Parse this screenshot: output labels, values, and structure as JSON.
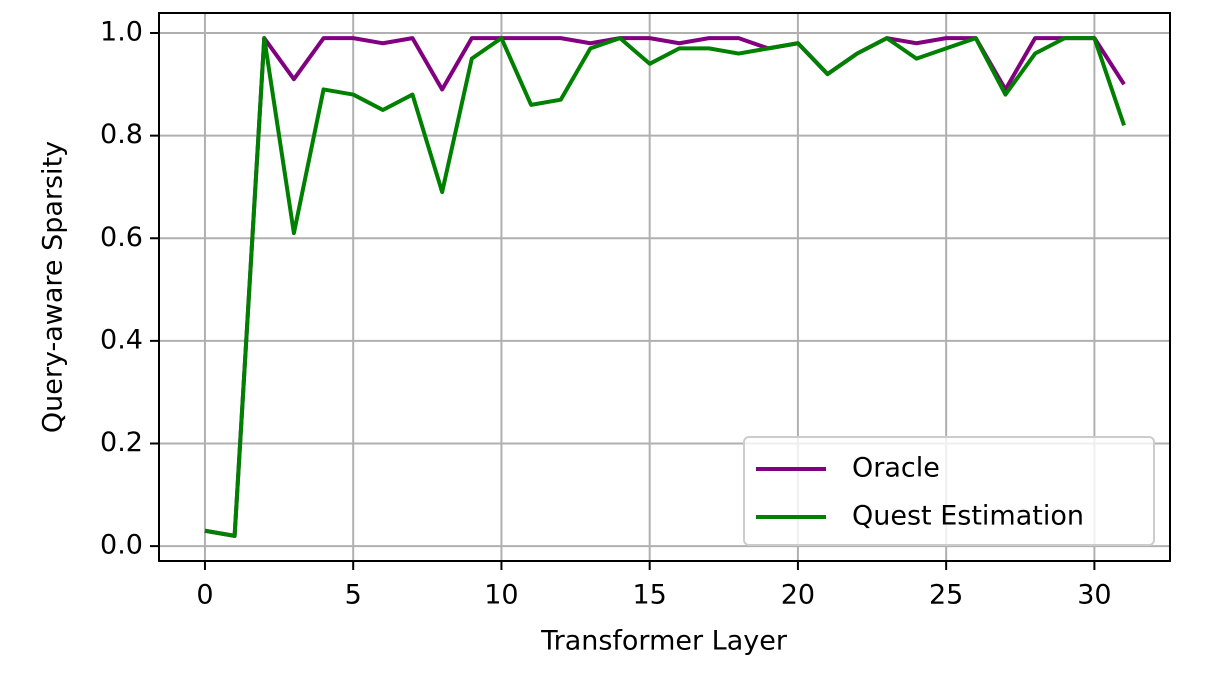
{
  "chart_data": {
    "type": "line",
    "x_label": "Transformer Layer",
    "y_label": "Query-aware Sparsity",
    "x": [
      0,
      1,
      2,
      3,
      4,
      5,
      6,
      7,
      8,
      9,
      10,
      11,
      12,
      13,
      14,
      15,
      16,
      17,
      18,
      19,
      20,
      21,
      22,
      23,
      24,
      25,
      26,
      27,
      28,
      29,
      30,
      31
    ],
    "series": [
      {
        "name": "Oracle",
        "color": "#800080",
        "values": [
          0.03,
          0.02,
          0.99,
          0.91,
          0.99,
          0.99,
          0.98,
          0.99,
          0.89,
          0.99,
          0.99,
          0.99,
          0.99,
          0.98,
          0.99,
          0.99,
          0.98,
          0.99,
          0.99,
          0.97,
          0.98,
          0.92,
          0.96,
          0.99,
          0.98,
          0.99,
          0.99,
          0.89,
          0.99,
          0.99,
          0.99,
          0.9
        ]
      },
      {
        "name": "Quest Estimation",
        "color": "#008000",
        "values": [
          0.03,
          0.02,
          0.99,
          0.61,
          0.89,
          0.88,
          0.85,
          0.88,
          0.69,
          0.95,
          0.99,
          0.86,
          0.87,
          0.97,
          0.99,
          0.94,
          0.97,
          0.97,
          0.96,
          0.97,
          0.98,
          0.92,
          0.96,
          0.99,
          0.95,
          0.97,
          0.99,
          0.88,
          0.96,
          0.99,
          0.99,
          0.82
        ]
      }
    ],
    "xlim": [
      -1.55,
      32.55
    ],
    "ylim": [
      -0.029,
      1.039
    ],
    "xticks": [
      0,
      5,
      10,
      15,
      20,
      25,
      30
    ],
    "yticks": [
      {
        "value": 0,
        "label": "0.0"
      },
      0.2,
      0.4,
      0.6,
      0.8,
      {
        "value": 1,
        "label": "1.0"
      }
    ],
    "grid": true,
    "legend": "lower right"
  }
}
